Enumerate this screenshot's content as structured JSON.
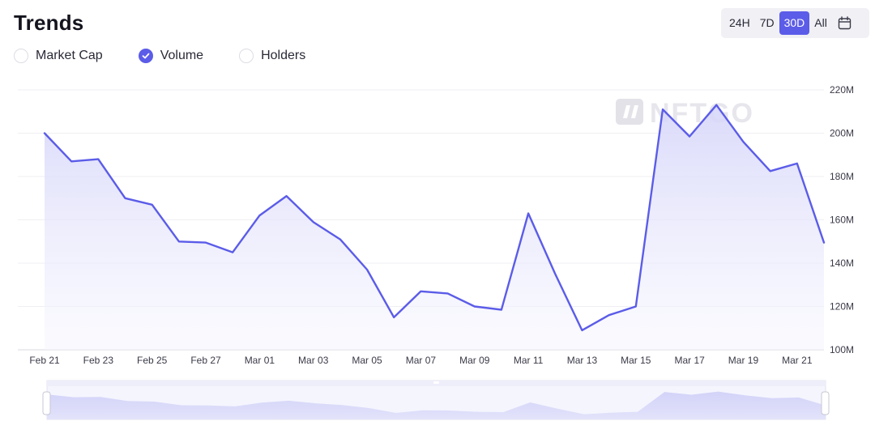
{
  "header": {
    "title": "Trends"
  },
  "metrics": [
    {
      "label": "Market Cap",
      "checked": false
    },
    {
      "label": "Volume",
      "checked": true
    },
    {
      "label": "Holders",
      "checked": false
    }
  ],
  "range": {
    "options": [
      "24H",
      "7D",
      "30D",
      "All"
    ],
    "selected": "30D",
    "calendar_icon": "calendar-icon"
  },
  "watermark": {
    "text": "NFTGO"
  },
  "colors": {
    "accent": "#5b5ce8",
    "line": "#5b5ce8",
    "fill_top": "#d9d9fb",
    "grid": "#ededf2"
  },
  "chart_data": {
    "type": "area",
    "title": "",
    "xlabel": "",
    "ylabel": "",
    "ylim": [
      100,
      220
    ],
    "y_ticks": [
      220,
      200,
      180,
      160,
      140,
      120,
      100
    ],
    "y_tick_labels": [
      "220M",
      "200M",
      "180M",
      "160M",
      "140M",
      "120M",
      "100M"
    ],
    "x_tick_labels": [
      "Feb 21",
      "Feb 23",
      "Feb 25",
      "Feb 27",
      "Mar 01",
      "Mar 03",
      "Mar 05",
      "Mar 07",
      "Mar 09",
      "Mar 11",
      "Mar 13",
      "Mar 15",
      "Mar 17",
      "Mar 19",
      "Mar 21"
    ],
    "grid": true,
    "series": [
      {
        "values": [
          200,
          187,
          188,
          170,
          167,
          150,
          149.5,
          145,
          162,
          171,
          159,
          151,
          137,
          115,
          127,
          126,
          120,
          118.5,
          163,
          135,
          109,
          116,
          120,
          211,
          198.5,
          213,
          196,
          182.5,
          186,
          149.5
        ]
      }
    ]
  }
}
